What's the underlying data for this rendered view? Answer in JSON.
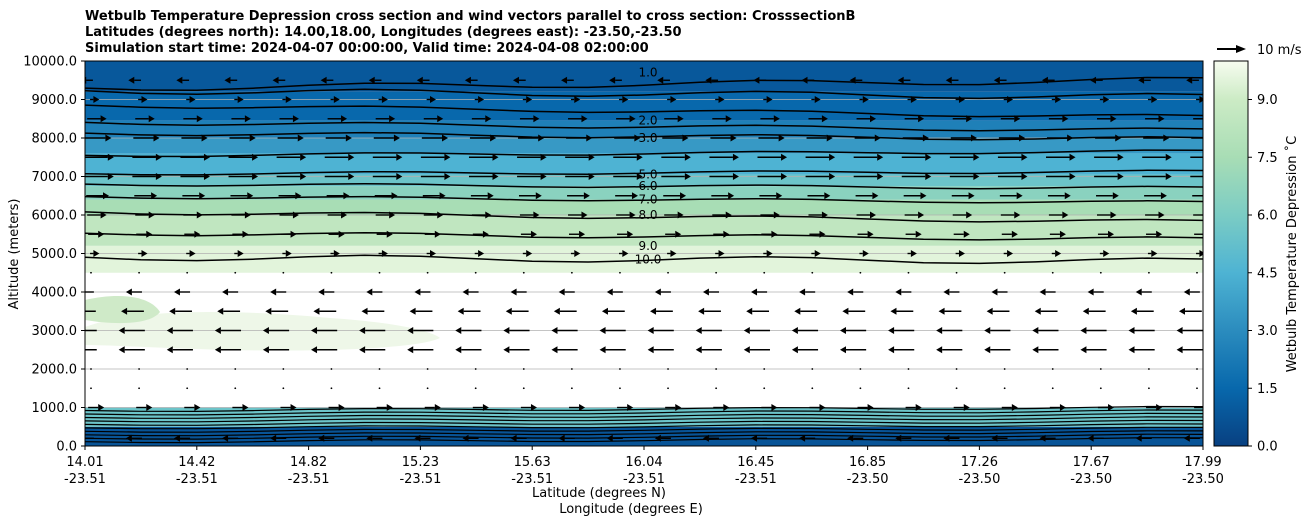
{
  "chart_data": {
    "type": "contour",
    "title_lines": [
      "Wetbulb Temperature Depression cross section and wind vectors parallel to cross section: CrosssectionB",
      "Latitudes (degrees north): 14.00,18.00, Longitudes (degrees east): -23.50,-23.50",
      "Simulation start time: 2024-04-07 00:00:00, Valid time: 2024-04-08 02:00:00"
    ],
    "ylabel": "Altitude (meters)",
    "xlabel_lat": "Latitude (degrees N)",
    "xlabel_lon": "Longitude (degrees E)",
    "ylim": [
      0,
      10000
    ],
    "yticks": [
      "0.0",
      "1000.0",
      "2000.0",
      "3000.0",
      "4000.0",
      "5000.0",
      "6000.0",
      "7000.0",
      "8000.0",
      "9000.0",
      "10000.0"
    ],
    "xticks_lat": [
      "14.01",
      "14.42",
      "14.82",
      "15.23",
      "15.63",
      "16.04",
      "16.45",
      "16.85",
      "17.26",
      "17.67",
      "17.99"
    ],
    "xticks_lon": [
      "-23.51",
      "-23.51",
      "-23.51",
      "-23.51",
      "-23.51",
      "-23.51",
      "-23.51",
      "-23.50",
      "-23.50",
      "-23.50",
      "-23.50"
    ],
    "colorbar": {
      "label": "Wetbulb Temperature Depression ˚C",
      "range": [
        0,
        10
      ],
      "ticks": [
        "0.0",
        "1.5",
        "3.0",
        "4.5",
        "6.0",
        "7.5",
        "9.0"
      ]
    },
    "quiver_key": "10 m/s",
    "contour_labels": [
      {
        "text": "1.0",
        "alt": 9700
      },
      {
        "text": "2.0",
        "alt": 8450
      },
      {
        "text": "3.0",
        "alt": 8000
      },
      {
        "text": "5.0",
        "alt": 7050
      },
      {
        "text": "6.0",
        "alt": 6750
      },
      {
        "text": "7.0",
        "alt": 6400
      },
      {
        "text": "8.0",
        "alt": 6000
      },
      {
        "text": "9.0",
        "alt": 5200
      },
      {
        "text": "10.0",
        "alt": 4850
      }
    ],
    "wetbulb_profile_mid": [
      {
        "alt": 0,
        "value": 0.5
      },
      {
        "alt": 500,
        "value": 1.0
      },
      {
        "alt": 1000,
        "value": 10.0
      },
      {
        "alt": 2000,
        "value": 10.0
      },
      {
        "alt": 4500,
        "value": 10.0
      },
      {
        "alt": 5200,
        "value": 9.0
      },
      {
        "alt": 6000,
        "value": 8.0
      },
      {
        "alt": 6400,
        "value": 7.0
      },
      {
        "alt": 6750,
        "value": 6.0
      },
      {
        "alt": 7050,
        "value": 5.0
      },
      {
        "alt": 7600,
        "value": 4.0
      },
      {
        "alt": 8000,
        "value": 3.0
      },
      {
        "alt": 8450,
        "value": 2.0
      },
      {
        "alt": 9200,
        "value": 1.0
      },
      {
        "alt": 10000,
        "value": 0.8
      }
    ],
    "wind_profile": [
      {
        "alt": 200,
        "u": -3
      },
      {
        "alt": 1000,
        "u": 3
      },
      {
        "alt": 1500,
        "u": 0.5
      },
      {
        "alt": 2000,
        "u": 0.3
      },
      {
        "alt": 2500,
        "u": -6
      },
      {
        "alt": 3000,
        "u": -6
      },
      {
        "alt": 3500,
        "u": -5
      },
      {
        "alt": 4000,
        "u": -3
      },
      {
        "alt": 4500,
        "u": 0.2
      },
      {
        "alt": 5000,
        "u": 1
      },
      {
        "alt": 5500,
        "u": 3
      },
      {
        "alt": 6000,
        "u": 4
      },
      {
        "alt": 6500,
        "u": 5
      },
      {
        "alt": 7000,
        "u": 7
      },
      {
        "alt": 7500,
        "u": 7
      },
      {
        "alt": 8000,
        "u": 6
      },
      {
        "alt": 8500,
        "u": 4
      },
      {
        "alt": 9000,
        "u": 1
      },
      {
        "alt": 9500,
        "u": -2
      }
    ]
  }
}
